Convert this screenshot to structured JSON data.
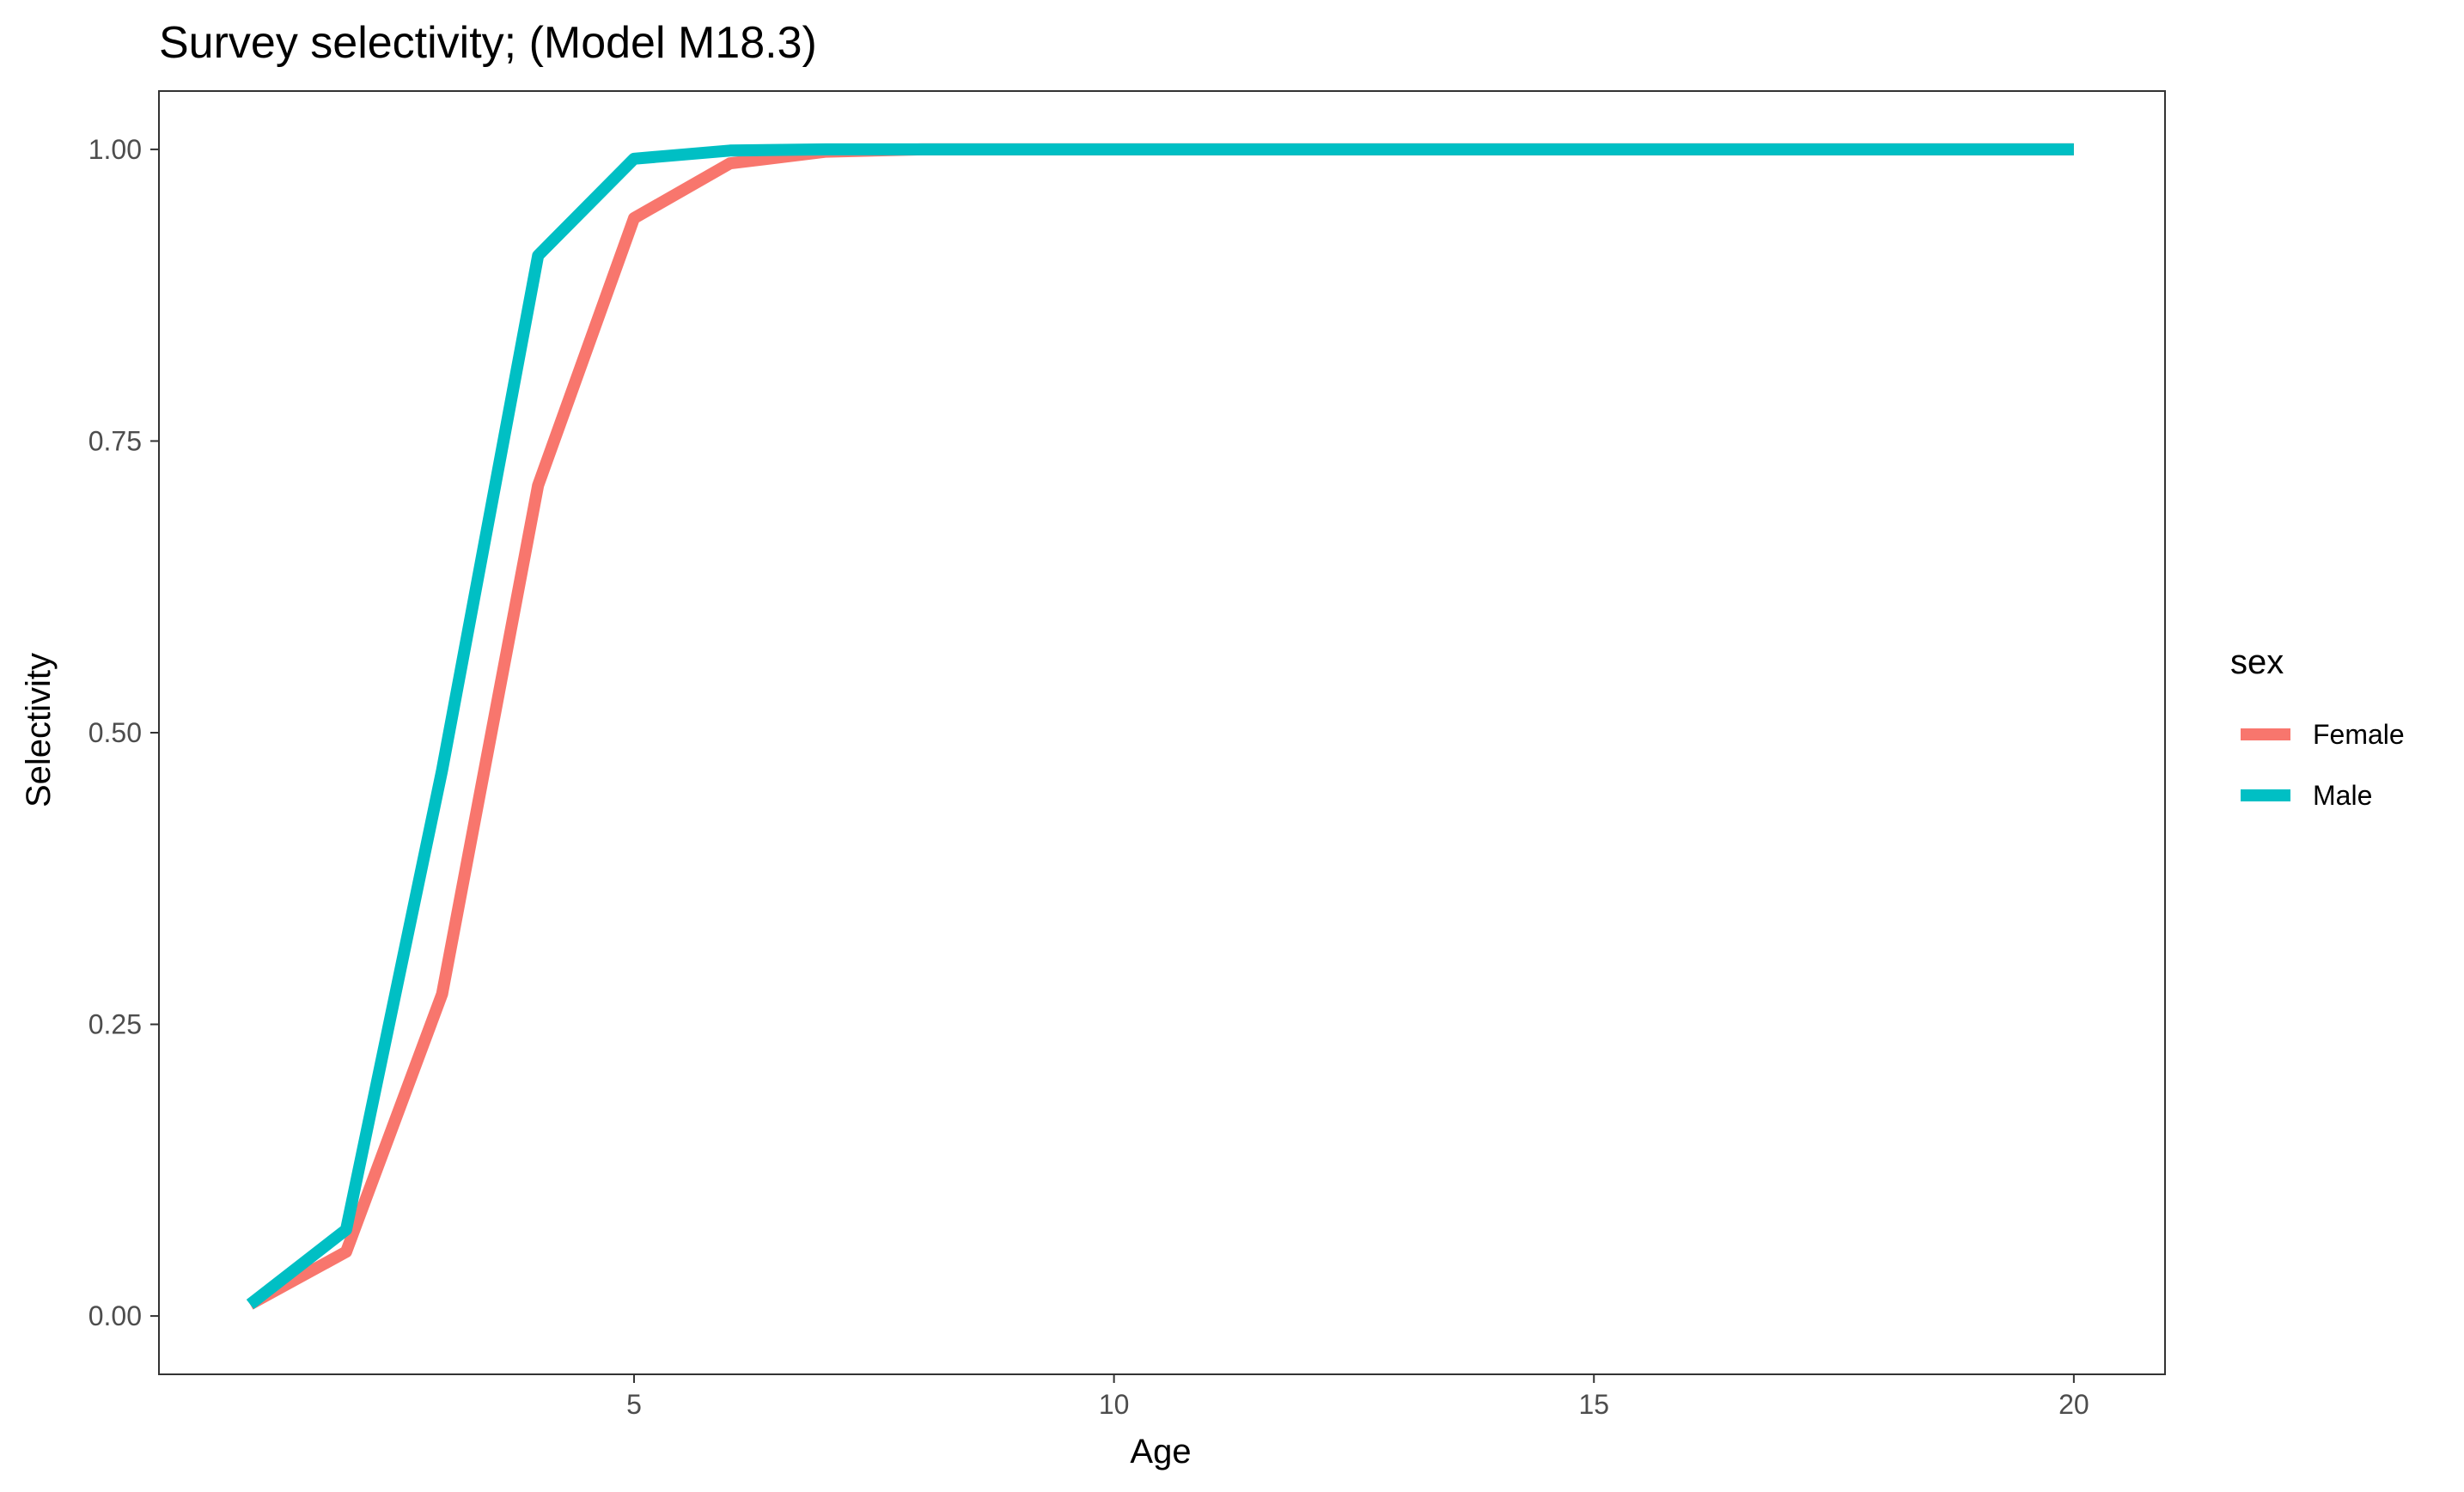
{
  "chart_data": {
    "type": "line",
    "title": "Survey selectivity; (Model M18.3)",
    "xlabel": "Age",
    "ylabel": "Selectivity",
    "xlim": [
      0.05,
      20.95
    ],
    "ylim": [
      -0.05,
      1.05
    ],
    "xticks": [
      5,
      10,
      15,
      20
    ],
    "yticks": [
      0.0,
      0.25,
      0.5,
      0.75,
      1.0
    ],
    "xtick_labels": [
      "5",
      "10",
      "15",
      "20"
    ],
    "ytick_labels": [
      "0.00",
      "0.25",
      "0.50",
      "0.75",
      "1.00"
    ],
    "grid": false,
    "legend": {
      "title": "sex",
      "position": "right"
    },
    "x": [
      1,
      2,
      3,
      4,
      5,
      6,
      7,
      8,
      9,
      10,
      11,
      12,
      13,
      14,
      15,
      16,
      17,
      18,
      19,
      20
    ],
    "series": [
      {
        "name": "Female",
        "color": "#F8766D",
        "values": [
          0.01,
          0.055,
          0.276,
          0.712,
          0.941,
          0.988,
          0.998,
          1.0,
          1.0,
          1.0,
          1.0,
          1.0,
          1.0,
          1.0,
          1.0,
          1.0,
          1.0,
          1.0,
          1.0,
          1.0
        ]
      },
      {
        "name": "Male",
        "color": "#00BFC4",
        "values": [
          0.01,
          0.074,
          0.468,
          0.909,
          0.992,
          0.999,
          1.0,
          1.0,
          1.0,
          1.0,
          1.0,
          1.0,
          1.0,
          1.0,
          1.0,
          1.0,
          1.0,
          1.0,
          1.0,
          1.0
        ]
      }
    ]
  }
}
